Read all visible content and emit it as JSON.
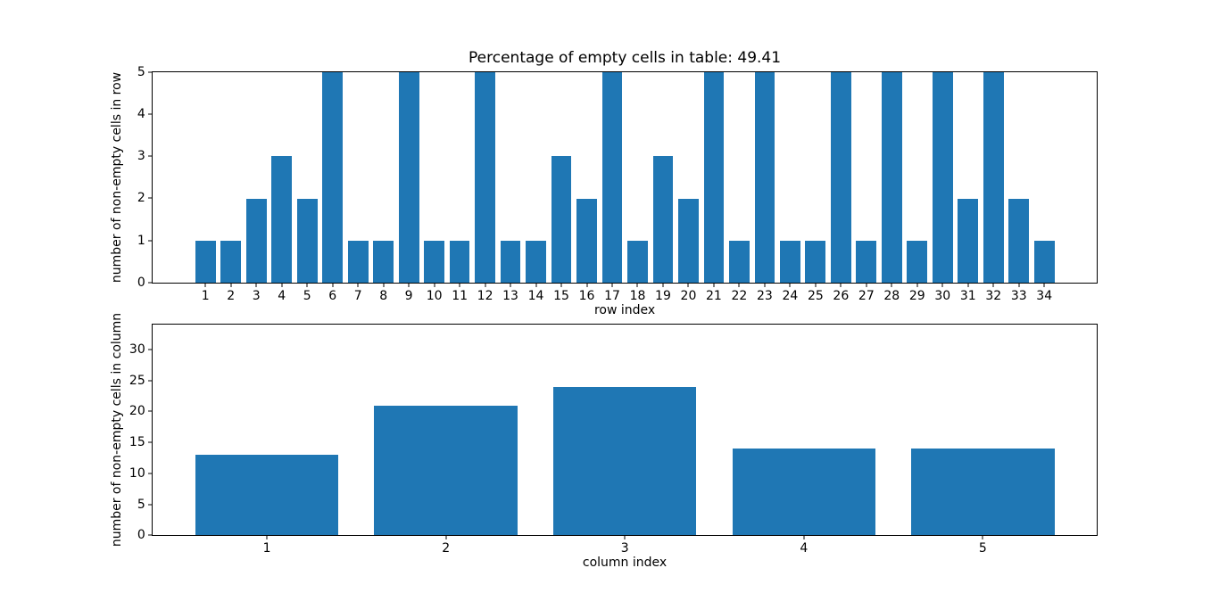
{
  "figure": {
    "background": "#ffffff",
    "bar_color": "#1f77b4",
    "spine_color": "#000000",
    "text_color": "#000000"
  },
  "chart_data": [
    {
      "type": "bar",
      "title": "Percentage of empty cells in table: 49.41",
      "xlabel": "row index",
      "ylabel": "number of non-empty cells in row",
      "categories": [
        1,
        2,
        3,
        4,
        5,
        6,
        7,
        8,
        9,
        10,
        11,
        12,
        13,
        14,
        15,
        16,
        17,
        18,
        19,
        20,
        21,
        22,
        23,
        24,
        25,
        26,
        27,
        28,
        29,
        30,
        31,
        32,
        33,
        34
      ],
      "values": [
        1,
        1,
        2,
        3,
        2,
        5,
        1,
        1,
        5,
        1,
        1,
        5,
        1,
        1,
        3,
        2,
        5,
        1,
        3,
        2,
        5,
        1,
        5,
        1,
        1,
        5,
        1,
        5,
        1,
        5,
        2,
        5,
        2,
        1
      ],
      "ylim": [
        0,
        5
      ],
      "yticks": [
        0,
        1,
        2,
        3,
        4,
        5
      ],
      "xlim": [
        -1.09,
        36.09
      ],
      "bar_width": 0.8,
      "grid": false,
      "legend": null
    },
    {
      "type": "bar",
      "title": "",
      "xlabel": "column index",
      "ylabel": "number of non-empty cells in column",
      "categories": [
        1,
        2,
        3,
        4,
        5
      ],
      "values": [
        13,
        21,
        24,
        14,
        14
      ],
      "ylim": [
        0,
        34
      ],
      "yticks": [
        0,
        5,
        10,
        15,
        20,
        25,
        30
      ],
      "xlim": [
        0.36,
        5.64
      ],
      "bar_width": 0.8,
      "grid": false,
      "legend": null
    }
  ]
}
